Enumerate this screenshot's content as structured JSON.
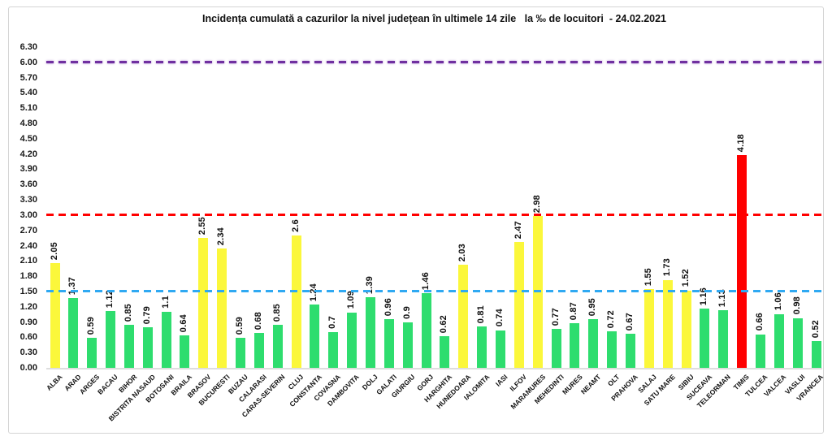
{
  "chart_data": {
    "type": "bar",
    "title": "Incidența cumulată a cazurilor la nivel județean în ultimele 14 zile   la ‰ de locuitori  - 24.02.2021",
    "xlabel": "",
    "ylabel": "",
    "ylim": [
      0,
      6.3
    ],
    "ytick_step": 0.3,
    "grid": false,
    "legend": false,
    "palette": {
      "green": "#2edd6e",
      "yellow": "#fbf73b",
      "red": "#fe0000"
    },
    "reference_lines": [
      {
        "value": 6.0,
        "color": "#7030a0",
        "style": "dashed"
      },
      {
        "value": 3.0,
        "color": "#ff0000",
        "style": "dashed"
      },
      {
        "value": 1.5,
        "color": "#2fa9f2",
        "style": "dashed"
      }
    ],
    "bars": [
      {
        "county": "ALBA",
        "value": 2.05,
        "color": "yellow"
      },
      {
        "county": "ARAD",
        "value": 1.37,
        "color": "green"
      },
      {
        "county": "ARGES",
        "value": 0.59,
        "color": "green"
      },
      {
        "county": "BACAU",
        "value": 1.12,
        "color": "green"
      },
      {
        "county": "BIHOR",
        "value": 0.85,
        "color": "green"
      },
      {
        "county": "BISTRITA NASAUD",
        "value": 0.79,
        "color": "green"
      },
      {
        "county": "BOTOSANI",
        "value": 1.1,
        "color": "green"
      },
      {
        "county": "BRAILA",
        "value": 0.64,
        "color": "green"
      },
      {
        "county": "BRASOV",
        "value": 2.55,
        "color": "yellow"
      },
      {
        "county": "BUCURESTI",
        "value": 2.34,
        "color": "yellow"
      },
      {
        "county": "BUZAU",
        "value": 0.59,
        "color": "green"
      },
      {
        "county": "CALARASI",
        "value": 0.68,
        "color": "green"
      },
      {
        "county": "CARAS-SEVERIN",
        "value": 0.85,
        "color": "green"
      },
      {
        "county": "CLUJ",
        "value": 2.6,
        "color": "yellow"
      },
      {
        "county": "CONSTANTA",
        "value": 1.24,
        "color": "green"
      },
      {
        "county": "COVASNA",
        "value": 0.7,
        "color": "green"
      },
      {
        "county": "DAMBOVITA",
        "value": 1.09,
        "color": "green"
      },
      {
        "county": "DOLJ",
        "value": 1.39,
        "color": "green"
      },
      {
        "county": "GALATI",
        "value": 0.96,
        "color": "green"
      },
      {
        "county": "GIURGIU",
        "value": 0.9,
        "color": "green"
      },
      {
        "county": "GORJ",
        "value": 1.46,
        "color": "green"
      },
      {
        "county": "HARGHITA",
        "value": 0.62,
        "color": "green"
      },
      {
        "county": "HUNEDOARA",
        "value": 2.03,
        "color": "yellow"
      },
      {
        "county": "IALOMITA",
        "value": 0.81,
        "color": "green"
      },
      {
        "county": "IASI",
        "value": 0.74,
        "color": "green"
      },
      {
        "county": "ILFOV",
        "value": 2.47,
        "color": "yellow"
      },
      {
        "county": "MARAMURES",
        "value": 2.98,
        "color": "yellow"
      },
      {
        "county": "MEHEDINTI",
        "value": 0.77,
        "color": "green"
      },
      {
        "county": "MURES",
        "value": 0.87,
        "color": "green"
      },
      {
        "county": "NEAMT",
        "value": 0.95,
        "color": "green"
      },
      {
        "county": "OLT",
        "value": 0.72,
        "color": "green"
      },
      {
        "county": "PRAHOVA",
        "value": 0.67,
        "color": "green"
      },
      {
        "county": "SALAJ",
        "value": 1.55,
        "color": "yellow"
      },
      {
        "county": "SATU MARE",
        "value": 1.73,
        "color": "yellow"
      },
      {
        "county": "SIBIU",
        "value": 1.52,
        "color": "yellow"
      },
      {
        "county": "SUCEAVA",
        "value": 1.16,
        "color": "green"
      },
      {
        "county": "TELEORMAN",
        "value": 1.13,
        "color": "green"
      },
      {
        "county": "TIMIS",
        "value": 4.18,
        "color": "red"
      },
      {
        "county": "TULCEA",
        "value": 0.66,
        "color": "green"
      },
      {
        "county": "VALCEA",
        "value": 1.06,
        "color": "green"
      },
      {
        "county": "VASLUI",
        "value": 0.98,
        "color": "green"
      },
      {
        "county": "VRANCEA",
        "value": 0.52,
        "color": "green"
      }
    ]
  }
}
